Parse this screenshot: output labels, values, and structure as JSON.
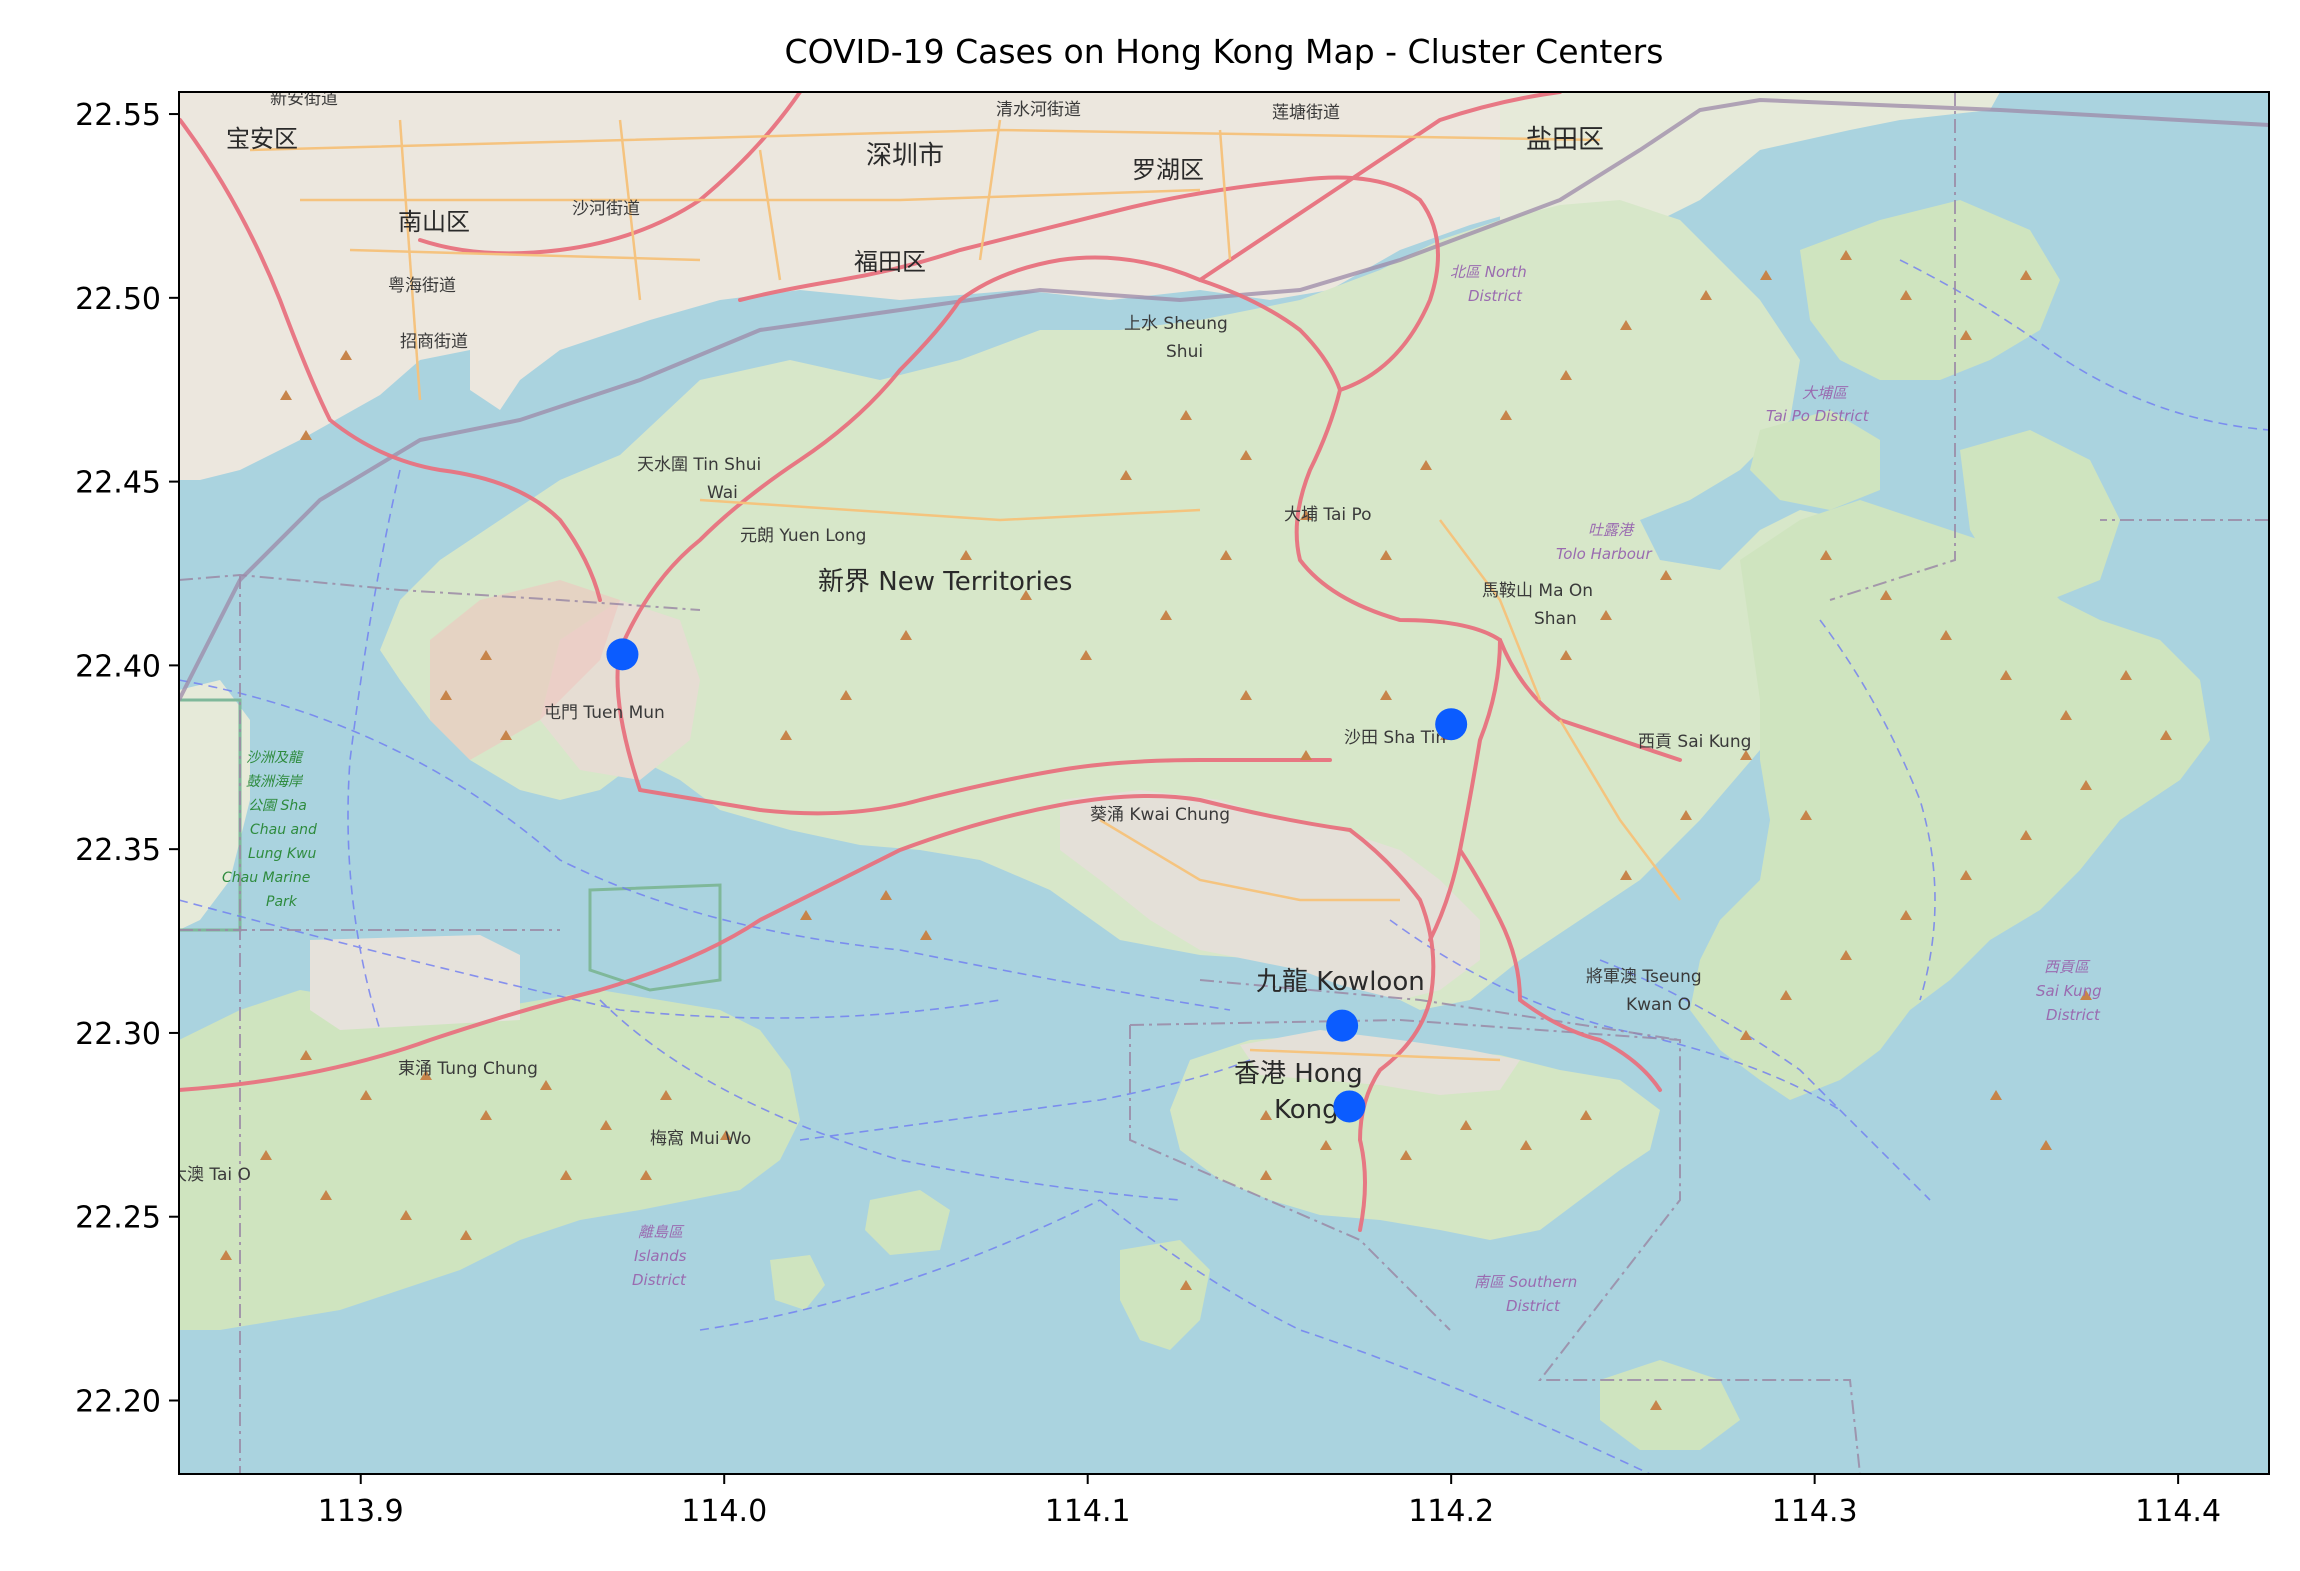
{
  "chart_data": {
    "type": "scatter",
    "title": "COVID-19 Cases on Hong Kong Map - Cluster Centers",
    "xlabel": "",
    "ylabel": "",
    "xlim": [
      113.85,
      114.425
    ],
    "ylim": [
      22.18,
      22.556
    ],
    "xticks": [
      113.9,
      114.0,
      114.1,
      114.2,
      114.3,
      114.4
    ],
    "yticks": [
      22.2,
      22.25,
      22.3,
      22.35,
      22.4,
      22.45,
      22.5,
      22.55
    ],
    "xtick_labels": [
      "113.9",
      "114.0",
      "114.1",
      "114.2",
      "114.3",
      "114.4"
    ],
    "ytick_labels": [
      "22.20",
      "22.25",
      "22.30",
      "22.35",
      "22.40",
      "22.45",
      "22.50",
      "22.55"
    ],
    "grid": false,
    "marker_color": "#0b5cff",
    "series": [
      {
        "points": [
          {
            "x": 113.972,
            "y": 22.403
          },
          {
            "x": 114.2,
            "y": 22.384
          },
          {
            "x": 114.17,
            "y": 22.302
          },
          {
            "x": 114.172,
            "y": 22.28
          }
        ]
      }
    ]
  },
  "basemap": {
    "colors": {
      "water": "#aad3df",
      "land": "#f0ece3",
      "park": "#cde6bd",
      "road": "#e8727f",
      "highway": "#f6c27a",
      "urban": "#e3dfd6",
      "boundary": "#9b8aa6",
      "ferry": "#6f7cf2"
    },
    "labels": [
      {
        "text": "新安街道"
      },
      {
        "text": "宝安区"
      },
      {
        "text": "南山区"
      },
      {
        "text": "粤海街道"
      },
      {
        "text": "招商街道"
      },
      {
        "text": "沙河街道"
      },
      {
        "text": "深圳市"
      },
      {
        "text": "清水河街道"
      },
      {
        "text": "福田区"
      },
      {
        "text": "罗湖区"
      },
      {
        "text": "莲塘街道"
      },
      {
        "text": "盐田区"
      },
      {
        "text": "上水 Sheung"
      },
      {
        "text": "Shui"
      },
      {
        "text": "北區 North"
      },
      {
        "text": "District"
      },
      {
        "text": "大埔區"
      },
      {
        "text": "Tai Po District"
      },
      {
        "text": "天水圍 Tin Shui"
      },
      {
        "text": "Wai"
      },
      {
        "text": "元朗 Yuen Long"
      },
      {
        "text": "新界 New Territories"
      },
      {
        "text": "大埔 Tai Po"
      },
      {
        "text": "吐露港"
      },
      {
        "text": "Tolo Harbour"
      },
      {
        "text": "馬鞍山 Ma On"
      },
      {
        "text": "Shan"
      },
      {
        "text": "屯門 Tuen Mun"
      },
      {
        "text": "沙田 Sha Tin"
      },
      {
        "text": "西貢 Sai Kung"
      },
      {
        "text": "葵涌 Kwai Chung"
      },
      {
        "text": "九龍 Kowloon"
      },
      {
        "text": "將軍澳 Tseung"
      },
      {
        "text": "Kwan O"
      },
      {
        "text": "西貢區"
      },
      {
        "text": "Sai Kung"
      },
      {
        "text": "District"
      },
      {
        "text": "香港 Hong"
      },
      {
        "text": "Kong"
      },
      {
        "text": "東涌 Tung Chung"
      },
      {
        "text": "梅窩 Mui Wo"
      },
      {
        "text": "大澳 Tai O"
      },
      {
        "text": "離島區"
      },
      {
        "text": "Islands"
      },
      {
        "text": "District"
      },
      {
        "text": "南區 Southern"
      },
      {
        "text": "District"
      },
      {
        "text": "沙洲及龍"
      },
      {
        "text": "鼓洲海岸"
      },
      {
        "text": "公園 Sha"
      },
      {
        "text": "Chau and"
      },
      {
        "text": "Lung Kwu"
      },
      {
        "text": "Chau Marine"
      },
      {
        "text": "Park"
      }
    ]
  }
}
